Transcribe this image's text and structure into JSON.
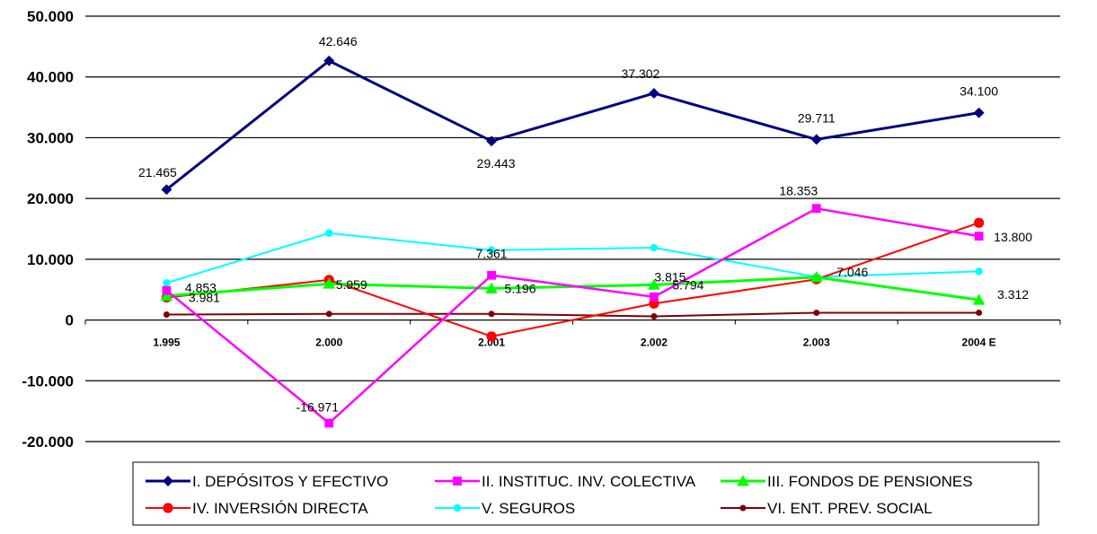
{
  "chart_data": {
    "type": "line",
    "categories": [
      "1.995",
      "2.000",
      "2.001",
      "2.002",
      "2.003",
      "2004 E"
    ],
    "ylim": [
      -20000,
      50000
    ],
    "yticks": [
      "50.000",
      "40.000",
      "30.000",
      "20.000",
      "10.000",
      "0",
      "-10.000",
      "-20.000"
    ],
    "grid": true,
    "legend_position": "bottom",
    "series": [
      {
        "name": "I. DEPÓSITOS Y EFECTIVO",
        "color": "#000080",
        "marker": "diamond",
        "values": [
          21465,
          42646,
          29443,
          37302,
          29711,
          34100
        ]
      },
      {
        "name": "II. INSTITUC. INV. COLECTIVA",
        "color": "#FF00FF",
        "marker": "square",
        "values": [
          4853,
          -16971,
          7361,
          3815,
          18353,
          13800
        ]
      },
      {
        "name": "III. FONDOS DE PENSIONES",
        "color": "#00FF00",
        "marker": "triangle",
        "values": [
          3981,
          5959,
          5196,
          5794,
          7046,
          3312
        ]
      },
      {
        "name": "IV. INVERSIÓN DIRECTA",
        "color": "#FF0000",
        "marker": "circle",
        "values": [
          3700,
          6600,
          -2700,
          2700,
          6700,
          16000
        ]
      },
      {
        "name": "V. SEGUROS",
        "color": "#00FFFF",
        "marker": "circle",
        "values": [
          6100,
          14300,
          11500,
          11900,
          7100,
          8000
        ]
      },
      {
        "name": "VI. ENT. PREV. SOCIAL",
        "color": "#800000",
        "marker": "circle",
        "values": [
          900,
          1000,
          1000,
          600,
          1200,
          1200
        ]
      }
    ],
    "data_labels": [
      {
        "series": 0,
        "point": 0,
        "text": "21.465"
      },
      {
        "series": 0,
        "point": 1,
        "text": "42.646"
      },
      {
        "series": 0,
        "point": 2,
        "text": "29.443"
      },
      {
        "series": 0,
        "point": 3,
        "text": "37.302"
      },
      {
        "series": 0,
        "point": 4,
        "text": "29.711"
      },
      {
        "series": 0,
        "point": 5,
        "text": "34.100"
      },
      {
        "series": 1,
        "point": 0,
        "text": "4.853"
      },
      {
        "series": 1,
        "point": 1,
        "text": "-16.971"
      },
      {
        "series": 1,
        "point": 2,
        "text": "7.361"
      },
      {
        "series": 1,
        "point": 3,
        "text": "3.815"
      },
      {
        "series": 1,
        "point": 4,
        "text": "18.353"
      },
      {
        "series": 1,
        "point": 5,
        "text": "13.800"
      },
      {
        "series": 2,
        "point": 0,
        "text": "3.981"
      },
      {
        "series": 2,
        "point": 1,
        "text": "5.959"
      },
      {
        "series": 2,
        "point": 2,
        "text": "5.196"
      },
      {
        "series": 2,
        "point": 3,
        "text": "5.794"
      },
      {
        "series": 2,
        "point": 4,
        "text": "7.046"
      },
      {
        "series": 2,
        "point": 5,
        "text": "3.312"
      }
    ]
  }
}
